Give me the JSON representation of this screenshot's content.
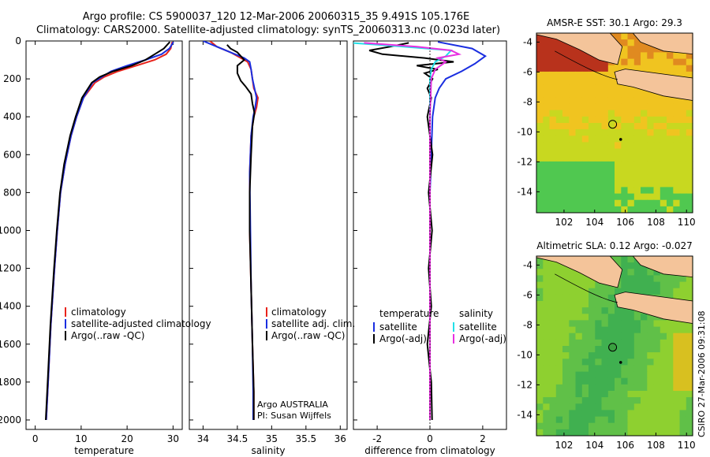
{
  "header": {
    "line1": "Argo profile: CS 5900037_120 12-Mar-2006 20060315_35 9.491S 105.176E",
    "line2": "Climatology: CARS2000. Satellite-adjusted climatology: synTS_20060313.nc (0.023d later)"
  },
  "side_label": "CSIRO 27-Mar-2006 09:31:08",
  "colors": {
    "red": "#e8231b",
    "blue": "#1a2ee0",
    "black": "#000000",
    "cyan": "#22e0e8",
    "magenta": "#e830e0"
  },
  "chart_data": [
    {
      "type": "line",
      "id": "temperature",
      "xlabel": "temperature",
      "xlim": [
        -2,
        32
      ],
      "ylim": [
        2050,
        0
      ],
      "xticks": [
        0,
        10,
        20,
        30
      ],
      "yticks": [
        0,
        200,
        400,
        600,
        800,
        1000,
        1200,
        1400,
        1600,
        1800,
        2000
      ],
      "legend": [
        "climatology",
        "satellite-adjusted climatology",
        "Argo(..raw -QC)"
      ],
      "series": [
        {
          "name": "climatology",
          "color": "red",
          "x": [
            29.8,
            29.5,
            28.5,
            26,
            22,
            18,
            15,
            13,
            10.5,
            9,
            7.8,
            6.5,
            5.5,
            4.8,
            4.2,
            3.4,
            2.8,
            2.4
          ],
          "y": [
            5,
            40,
            70,
            100,
            130,
            160,
            190,
            220,
            300,
            400,
            500,
            650,
            800,
            1000,
            1200,
            1500,
            1800,
            2000
          ]
        },
        {
          "name": "satellite-adjusted climatology",
          "color": "blue",
          "x": [
            30.1,
            29.2,
            27.5,
            24,
            20,
            16.5,
            14.5,
            12.5,
            10.5,
            9,
            7.8,
            6.5,
            5.5,
            4.8,
            4.2,
            3.4,
            2.8,
            2.4
          ],
          "y": [
            5,
            40,
            70,
            100,
            130,
            160,
            190,
            220,
            300,
            400,
            500,
            650,
            800,
            1000,
            1200,
            1500,
            1800,
            2000
          ]
        },
        {
          "name": "Argo(..raw -QC)",
          "color": "black",
          "x": [
            29.3,
            28,
            26,
            24,
            21,
            17,
            14,
            12.3,
            10.2,
            8.8,
            7.6,
            6.3,
            5.4,
            4.7,
            4.1,
            3.3,
            2.7,
            2.3
          ],
          "y": [
            5,
            40,
            70,
            100,
            130,
            160,
            190,
            220,
            300,
            400,
            500,
            650,
            800,
            1000,
            1200,
            1500,
            1800,
            2000
          ]
        }
      ]
    },
    {
      "type": "line",
      "id": "salinity",
      "xlabel": "salinity",
      "xlim": [
        33.8,
        36.1
      ],
      "ylim": [
        2050,
        0
      ],
      "xticks": [
        34,
        34.5,
        35,
        35.5,
        36
      ],
      "legend": [
        "climatology",
        "satellite adj. clim.",
        "Argo(..raw -QC)"
      ],
      "annotations": [
        "Argo AUSTRALIA",
        "PI: Susan Wijffels"
      ],
      "series": [
        {
          "name": "climatology",
          "color": "red",
          "x": [
            34.1,
            34.2,
            34.4,
            34.55,
            34.65,
            34.7,
            34.72,
            34.74,
            34.8,
            34.78,
            34.74,
            34.7,
            34.68,
            34.68,
            34.7,
            34.72,
            34.74,
            34.74
          ],
          "y": [
            0,
            30,
            60,
            90,
            110,
            150,
            200,
            250,
            300,
            350,
            400,
            500,
            700,
            1000,
            1300,
            1600,
            1850,
            2000
          ]
        },
        {
          "name": "satellite adj. clim.",
          "color": "blue",
          "x": [
            34.0,
            34.2,
            34.4,
            34.6,
            34.68,
            34.7,
            34.72,
            34.75,
            34.78,
            34.76,
            34.73,
            34.7,
            34.68,
            34.69,
            34.7,
            34.72,
            34.73,
            34.73
          ],
          "y": [
            0,
            30,
            60,
            90,
            110,
            150,
            200,
            250,
            300,
            350,
            400,
            500,
            700,
            1000,
            1300,
            1600,
            1850,
            2000
          ]
        },
        {
          "name": "Argo(..raw -QC)",
          "color": "black",
          "x": [
            34.35,
            34.4,
            34.5,
            34.55,
            34.6,
            34.5,
            34.5,
            34.55,
            34.62,
            34.7,
            34.72,
            34.75,
            34.72,
            34.7,
            34.68,
            34.68,
            34.7,
            34.72,
            34.74,
            34.74
          ],
          "y": [
            20,
            40,
            60,
            80,
            100,
            130,
            170,
            210,
            240,
            280,
            330,
            380,
            450,
            600,
            800,
            1000,
            1300,
            1600,
            1850,
            2000
          ]
        }
      ]
    },
    {
      "type": "line",
      "id": "difference",
      "xlabel": "difference from climatology",
      "xlim": [
        -2.9,
        2.9
      ],
      "ylim": [
        2050,
        0
      ],
      "xticks": [
        -2,
        0,
        2
      ],
      "legend_left_title": "temperature",
      "legend_right_title": "salinity",
      "legend_left": [
        "satellite",
        "Argo(-adj)"
      ],
      "legend_right": [
        "satellite",
        "Argo(-adj)"
      ],
      "series": [
        {
          "name": "temperature satellite",
          "color": "blue",
          "x": [
            0.3,
            1.6,
            2.1,
            1.7,
            1.2,
            0.6,
            0.35,
            0.2,
            0.1,
            0.05,
            0,
            0,
            0,
            0,
            0,
            0
          ],
          "y": [
            5,
            40,
            80,
            120,
            160,
            200,
            250,
            300,
            400,
            600,
            800,
            1000,
            1300,
            1600,
            1850,
            2000
          ]
        },
        {
          "name": "temperature Argo(-adj)",
          "color": "black",
          "x": [
            -0.8,
            -1.5,
            -2.3,
            -1.8,
            -0.2,
            0.9,
            -0.5,
            0.3,
            -0.2,
            0.1,
            -0.1,
            0.05,
            -0.1,
            0.1,
            -0.05,
            0.08,
            -0.05,
            0.05,
            -0.1,
            0.05,
            0.08
          ],
          "y": [
            10,
            30,
            50,
            70,
            90,
            110,
            130,
            150,
            170,
            200,
            250,
            300,
            400,
            600,
            800,
            1000,
            1200,
            1400,
            1600,
            1800,
            2000
          ]
        },
        {
          "name": "salinity satellite",
          "color": "cyan",
          "x": [
            -3,
            -1,
            0.8,
            0.6,
            0.2,
            0.05,
            0,
            0,
            0,
            0,
            0,
            0,
            0,
            0
          ],
          "y": [
            10,
            30,
            50,
            80,
            110,
            150,
            200,
            300,
            500,
            800,
            1200,
            1500,
            1800,
            2000
          ]
        },
        {
          "name": "salinity Argo(-adj)",
          "color": "magenta",
          "x": [
            -2.5,
            -0.5,
            0.8,
            1.1,
            0.3,
            0.6,
            0.2,
            0.05,
            0,
            0,
            0,
            0
          ],
          "y": [
            10,
            30,
            50,
            70,
            90,
            110,
            150,
            200,
            400,
            800,
            1400,
            2000
          ]
        }
      ]
    },
    {
      "type": "heatmap",
      "id": "sst_map",
      "title": "AMSR-E SST: 30.1 Argo: 29.3",
      "xlim": [
        100.2,
        110.4
      ],
      "ylim": [
        -15.4,
        -3.4
      ],
      "xticks": [
        102,
        104,
        106,
        108,
        110
      ],
      "yticks": [
        -4,
        -6,
        -8,
        -10,
        -12,
        -14
      ],
      "argo_position": {
        "lon": 105.176,
        "lat": -9.491
      }
    },
    {
      "type": "heatmap",
      "id": "sla_map",
      "title": "Altimetric SLA: 0.12 Argo: -0.027",
      "xlim": [
        100.2,
        110.4
      ],
      "ylim": [
        -15.4,
        -3.4
      ],
      "xticks": [
        102,
        104,
        106,
        108,
        110
      ],
      "yticks": [
        -4,
        -6,
        -8,
        -10,
        -12,
        -14
      ],
      "argo_position": {
        "lon": 105.176,
        "lat": -9.491
      }
    }
  ]
}
